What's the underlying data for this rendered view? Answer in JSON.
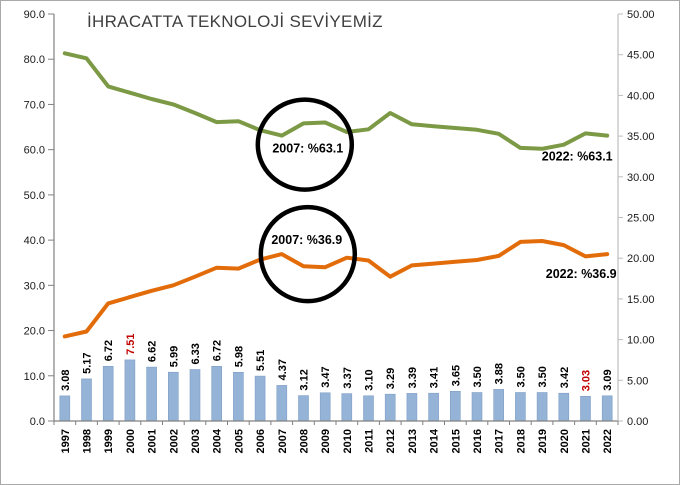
{
  "chart_data": {
    "type": "combo",
    "title": "İHRACATTA TEKNOLOJİ SEVİYEMİZ",
    "grid": false,
    "legend": "none",
    "categories": [
      "1997",
      "1998",
      "1999",
      "2000",
      "2001",
      "2002",
      "2003",
      "2004",
      "2005",
      "2006",
      "2007",
      "2008",
      "2009",
      "2010",
      "2011",
      "2012",
      "2013",
      "2014",
      "2015",
      "2016",
      "2017",
      "2018",
      "2019",
      "2020",
      "2021",
      "2022"
    ],
    "left_axis": {
      "min": 0,
      "max": 90,
      "step": 10,
      "decimals": 1
    },
    "right_axis": {
      "min": 0,
      "max": 50,
      "step": 5,
      "decimals": 2
    },
    "series": [
      {
        "id": "green_line",
        "type": "line",
        "axis": "left",
        "color": "#7C9A45",
        "values": [
          81.3,
          80.2,
          74.0,
          72.6,
          71.2,
          70.0,
          68.1,
          66.1,
          66.3,
          64.3,
          63.1,
          65.8,
          66.0,
          63.9,
          64.5,
          68.1,
          65.6,
          65.2,
          64.8,
          64.4,
          63.5,
          60.4,
          60.2,
          61.1,
          63.6,
          63.1
        ]
      },
      {
        "id": "orange_line",
        "type": "line",
        "axis": "left",
        "color": "#E36C0A",
        "values": [
          18.7,
          19.8,
          26.0,
          27.4,
          28.8,
          30.0,
          31.9,
          33.9,
          33.7,
          35.7,
          36.9,
          34.2,
          34.0,
          36.1,
          35.5,
          31.9,
          34.4,
          34.8,
          35.2,
          35.6,
          36.5,
          39.6,
          39.8,
          38.9,
          36.4,
          36.9
        ]
      },
      {
        "id": "bars",
        "type": "bar",
        "axis": "right",
        "color": "#95B3D7",
        "label_color": "#000000",
        "highlight_label_color": "#C00000",
        "highlight_years": [
          "2000",
          "2021"
        ],
        "labels": [
          "3.08",
          "5.17",
          "6.72",
          "7.51",
          "6.62",
          "5.99",
          "6.33",
          "6.72",
          "5.98",
          "5.51",
          "4.37",
          "3.12",
          "3.47",
          "3.37",
          "3.10",
          "3.29",
          "3.39",
          "3.41",
          "3.65",
          "3.50",
          "3.88",
          "3.50",
          "3.50",
          "3.42",
          "3.03",
          "3.09"
        ]
      }
    ],
    "annotations": [
      {
        "text": "2007: %63.1",
        "year": "2007",
        "series": "green_line",
        "circled": true
      },
      {
        "text": "2007: %36.9",
        "year": "2007",
        "series": "orange_line",
        "circled": true
      },
      {
        "text": "2022: %63.1",
        "year": "2022",
        "series": "green_line",
        "circled": false
      },
      {
        "text": "2022: %36.9",
        "year": "2022",
        "series": "orange_line",
        "circled": false
      }
    ]
  }
}
